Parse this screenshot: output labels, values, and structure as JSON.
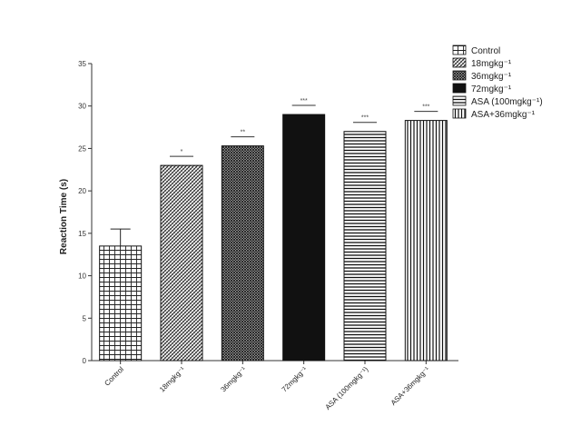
{
  "chart_data": {
    "type": "bar",
    "title": "",
    "xlabel": "",
    "ylabel": "Reaction Time (s)",
    "ylim": [
      0,
      35
    ],
    "yticks": [
      0,
      5,
      10,
      15,
      20,
      25,
      30,
      35
    ],
    "ytick_labels": [
      "0",
      "5",
      "10",
      "15",
      "20",
      "25",
      "30",
      "35"
    ],
    "categories": [
      "Control",
      "18mgkg⁻¹",
      "36mgkg⁻¹",
      "72mgkg⁻¹",
      "ASA (100mgkg⁻¹)",
      "ASA+36mgkg⁻¹"
    ],
    "values": [
      13.5,
      23.0,
      25.3,
      29.0,
      27.0,
      28.3
    ],
    "error_upper": [
      15.5,
      null,
      null,
      null,
      null,
      null
    ],
    "significance": [
      "",
      "*",
      "**",
      "***",
      "***",
      "***"
    ],
    "patterns": [
      "grid",
      "crosshatch",
      "dense-crosshatch",
      "solid",
      "horizontal-lines",
      "vertical-lines"
    ],
    "legend": {
      "placement": "top-right",
      "entries": [
        "Control",
        "18mgkg⁻¹",
        "36mgkg⁻¹",
        "72mgkg⁻¹",
        "ASA (100mgkg⁻¹)",
        "ASA+36mgkg⁻¹"
      ]
    },
    "grid": false,
    "colors": {
      "bar_dark": "#111111",
      "axis": "#333333",
      "background": "#ffffff"
    }
  }
}
